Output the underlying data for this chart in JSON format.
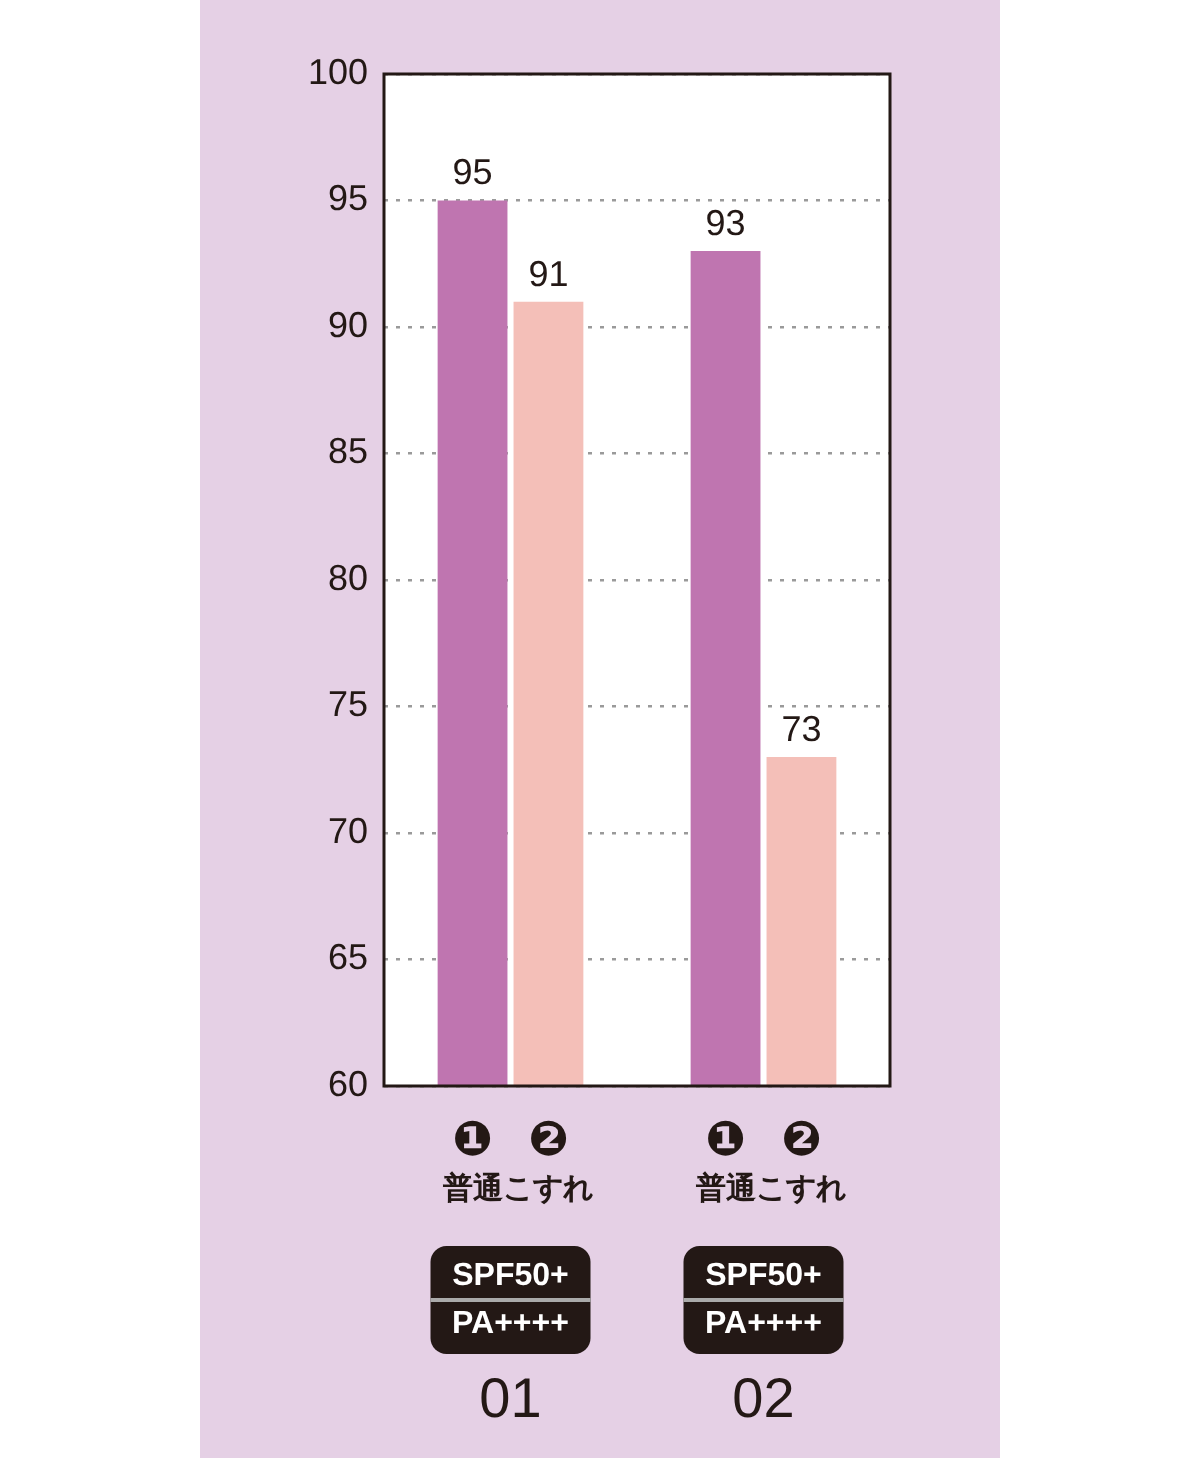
{
  "chart_data": {
    "type": "bar",
    "categories": [
      "SPF50+\nPA++++\n01",
      "SPF50+\nPA++++\n02"
    ],
    "series": [
      {
        "name": "❶\n普通",
        "color": "#bf75b0",
        "values": [
          95,
          93
        ]
      },
      {
        "name": "❷\nこすれ",
        "color": "#f4bfb8",
        "values": [
          91,
          73
        ]
      }
    ],
    "ylim": [
      60,
      100
    ],
    "yticks": [
      60,
      65,
      70,
      75,
      80,
      85,
      90,
      95,
      100
    ],
    "grid": "y",
    "legend": false,
    "data_labels": true
  }
}
